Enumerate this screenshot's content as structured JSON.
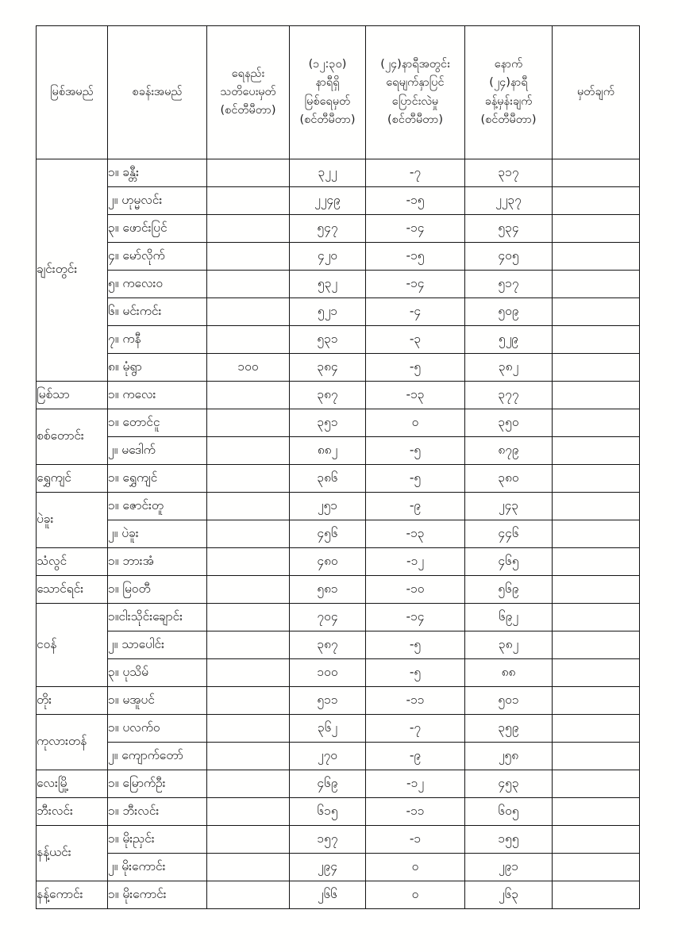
{
  "page": {
    "kind": "scanned river water-level bulletin table (Myanmar)"
  },
  "table": {
    "headers": [
      "မြစ်အမည်",
      "စခန်းအမည်",
      "ရေနည်း\nသတိပေးမှတ်\n(စင်တီမီတာ)",
      "(၁၂:၃၀)\nနာရီရှိ\nမြစ်ရေမှတ်\n(စင်တီမီတာ)",
      "(၂၄)နာရီအတွင်း\nရေမျက်နှာပြင်\nပြောင်းလဲမှု\n(စင်တီမီတာ)",
      "နောက်\n(၂၄)နာရီ\nခန့်မှန်းချက်\n(စင်တီမီတာ)",
      "မှတ်ချက်"
    ],
    "groups": [
      {
        "river": "ချင်းတွင်း",
        "rows": [
          {
            "station": "၁။ ခန္တီး",
            "warning": "",
            "level": "၃၂၂",
            "change": "-၇",
            "forecast": "၃၁၇",
            "remark": ""
          },
          {
            "station": "၂။ ဟုမ္မလင်း",
            "warning": "",
            "level": "၂၂၄၉",
            "change": "-၁၅",
            "forecast": "၂၂၃၇",
            "remark": ""
          },
          {
            "station": "၃။ ဖောင်းပြင်",
            "warning": "",
            "level": "၅၄၇",
            "change": "-၁၄",
            "forecast": "၅၃၄",
            "remark": ""
          },
          {
            "station": "၄။ မော်လိုက်",
            "warning": "",
            "level": "၄၂၀",
            "change": "-၁၅",
            "forecast": "၄၀၅",
            "remark": ""
          },
          {
            "station": "၅။ ကလေးဝ",
            "warning": "",
            "level": "၅၃၂",
            "change": "-၁၄",
            "forecast": "၅၁၇",
            "remark": ""
          },
          {
            "station": "၆။ မင်းကင်း",
            "warning": "",
            "level": "၅၂၁",
            "change": "-၄",
            "forecast": "၅၀၉",
            "remark": ""
          },
          {
            "station": "၇။ ကနီ",
            "warning": "",
            "level": "၅၃၁",
            "change": "-၃",
            "forecast": "၅၂၉",
            "remark": ""
          },
          {
            "station": "၈။ မုံရွာ",
            "warning": "၁၀၀",
            "level": "၃၈၄",
            "change": "-၅",
            "forecast": "၃၈၂",
            "remark": ""
          }
        ]
      },
      {
        "river": "မြစ်သာ",
        "rows": [
          {
            "station": "၁။ ကလေး",
            "warning": "",
            "level": "၃၈၇",
            "change": "-၁၃",
            "forecast": "၃၇၇",
            "remark": ""
          }
        ]
      },
      {
        "river": "စစ်တောင်း",
        "rows": [
          {
            "station": "၁။ တောင်ငူ",
            "warning": "",
            "level": "၃၅၁",
            "change": "၀",
            "forecast": "၃၅၀",
            "remark": ""
          },
          {
            "station": "၂။ မဒေါက်",
            "warning": "",
            "level": "၈၈၂",
            "change": "-၅",
            "forecast": "၈၇၉",
            "remark": ""
          }
        ]
      },
      {
        "river": "ရွှေကျင်",
        "rows": [
          {
            "station": "၁။ ရွှေကျင်",
            "warning": "",
            "level": "၃၈၆",
            "change": "-၅",
            "forecast": "၃၈၀",
            "remark": ""
          }
        ]
      },
      {
        "river": "ပဲခူး",
        "rows": [
          {
            "station": "၁။ ဇောင်းတူ",
            "warning": "",
            "level": "၂၅၁",
            "change": "-၉",
            "forecast": "၂၄၃",
            "remark": ""
          },
          {
            "station": "၂။ ပဲခူး",
            "warning": "",
            "level": "၄၅၆",
            "change": "-၁၃",
            "forecast": "၄၄၆",
            "remark": ""
          }
        ]
      },
      {
        "river": "သံလွင်",
        "rows": [
          {
            "station": "၁။ ဘားအံ",
            "warning": "",
            "level": "၄၈၀",
            "change": "-၁၂",
            "forecast": "၄၆၅",
            "remark": ""
          }
        ]
      },
      {
        "river": "သောင်ရင်း",
        "rows": [
          {
            "station": "၁။ မြဝတီ",
            "warning": "",
            "level": "၅၈၁",
            "change": "-၁၀",
            "forecast": "၅၆၉",
            "remark": ""
          }
        ]
      },
      {
        "river": "ငဝန်",
        "rows": [
          {
            "station": "၁။ငါးသိုင်းချောင်း",
            "warning": "",
            "level": "၇၀၄",
            "change": "-၁၄",
            "forecast": "၆၉၂",
            "remark": ""
          },
          {
            "station": "၂။ သာပေါင်း",
            "warning": "",
            "level": "၃၈၇",
            "change": "-၅",
            "forecast": "၃၈၂",
            "remark": ""
          },
          {
            "station": "၃။ ပုသိမ်",
            "warning": "",
            "level": "၁၀၀",
            "change": "-၅",
            "forecast": "၈၈",
            "remark": ""
          }
        ]
      },
      {
        "river": "တိုး",
        "rows": [
          {
            "station": "၁။ မအူပင်",
            "warning": "",
            "level": "၅၁၁",
            "change": "-၁၁",
            "forecast": "၅၀၁",
            "remark": ""
          }
        ]
      },
      {
        "river": "ကုလားတန်",
        "rows": [
          {
            "station": "၁။ ပလက်ဝ",
            "warning": "",
            "level": "၃၆၂",
            "change": "-၇",
            "forecast": "၃၅၉",
            "remark": ""
          },
          {
            "station": "၂။ ကျောက်တော်",
            "warning": "",
            "level": "၂၇၀",
            "change": "-၉",
            "forecast": "၂၅၈",
            "remark": ""
          }
        ]
      },
      {
        "river": "လေးမြို့",
        "rows": [
          {
            "station": "၁။ မြောက်ဦး",
            "warning": "",
            "level": "၄၆၉",
            "change": "-၁၂",
            "forecast": "၄၅၃",
            "remark": ""
          }
        ]
      },
      {
        "river": "ဘီးလင်း",
        "rows": [
          {
            "station": "၁။ ဘီးလင်း",
            "warning": "",
            "level": "၆၁၅",
            "change": "-၁၁",
            "forecast": "၆၀၅",
            "remark": ""
          }
        ]
      },
      {
        "river": "နန့်ယင်း",
        "rows": [
          {
            "station": "၁။ မိုးညှင်း",
            "warning": "",
            "level": "၁၅၇",
            "change": "-၁",
            "forecast": "၁၅၅",
            "remark": ""
          },
          {
            "station": "၂။ မိုးကောင်း",
            "warning": "",
            "level": "၂၉၄",
            "change": "၀",
            "forecast": "၂၉၁",
            "remark": ""
          }
        ]
      },
      {
        "river": "နန့်ကောင်း",
        "rows": [
          {
            "station": "၁။ မိုးကောင်း",
            "warning": "",
            "level": "၂၆၆",
            "change": "၀",
            "forecast": "၂၆၃",
            "remark": ""
          }
        ]
      }
    ]
  }
}
